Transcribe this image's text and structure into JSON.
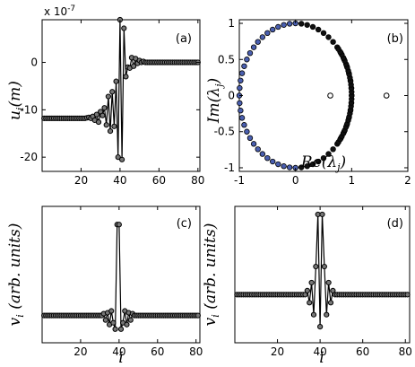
{
  "chart_data": [
    {
      "type": "line",
      "panel_label": "(a)",
      "ylabel": "u_i(m)",
      "ylabel_parts": {
        "base": "u",
        "sub": "i",
        "rest": "(m)"
      },
      "multiplier": "x 10",
      "multiplier_exp": "-7",
      "xlim": [
        0,
        81
      ],
      "ylim": [
        -23,
        9
      ],
      "xticks": [
        "20",
        "40",
        "60",
        "80"
      ],
      "xtick_values": [
        20,
        40,
        60,
        80
      ],
      "yticks": [
        "-20",
        "-10",
        "0"
      ],
      "ytick_values": [
        -20,
        -10,
        0
      ],
      "x": [
        1,
        2,
        3,
        4,
        5,
        6,
        7,
        8,
        9,
        10,
        11,
        12,
        13,
        14,
        15,
        16,
        17,
        18,
        19,
        20,
        21,
        22,
        23,
        24,
        25,
        26,
        27,
        28,
        29,
        30,
        31,
        32,
        33,
        34,
        35,
        36,
        37,
        38,
        39,
        40,
        41,
        42,
        43,
        44,
        45,
        46,
        47,
        48,
        49,
        50,
        51,
        52,
        53,
        54,
        55,
        56,
        57,
        58,
        59,
        60,
        61,
        62,
        63,
        64,
        65,
        66,
        67,
        68,
        69,
        70,
        71,
        72,
        73,
        74,
        75,
        76,
        77,
        78,
        79,
        80
      ],
      "y": [
        -11.8,
        -11.8,
        -11.8,
        -11.8,
        -11.8,
        -11.8,
        -11.8,
        -11.8,
        -11.8,
        -11.8,
        -11.8,
        -11.8,
        -11.8,
        -11.8,
        -11.8,
        -11.8,
        -11.8,
        -11.8,
        -11.8,
        -11.8,
        -11.8,
        -11.8,
        -11.7,
        -11.6,
        -11.8,
        -11.4,
        -12.2,
        -11.0,
        -12.6,
        -10.4,
        -11.2,
        -9.6,
        -13.2,
        -7.2,
        -14.5,
        -6.2,
        -13.5,
        -4.0,
        -20.0,
        9.0,
        -20.5,
        7.2,
        -3.0,
        -1.0,
        -1.2,
        1.0,
        -0.8,
        0.8,
        -0.2,
        0.4,
        0.0,
        0.2,
        0.0,
        0.0,
        0.0,
        0.0,
        0.0,
        0.0,
        0.0,
        0.0,
        0.0,
        0.0,
        0.0,
        0.0,
        0.0,
        0.0,
        0.0,
        0.0,
        0.0,
        0.0,
        0.0,
        0.0,
        0.0,
        0.0,
        0.0,
        0.0,
        0.0,
        0.0,
        0.0,
        0.0
      ]
    },
    {
      "type": "scatter",
      "panel_label": "(b)",
      "xlabel": "Re(λ_j)",
      "ylabel": "Im(λ_j)",
      "xlabel_parts": {
        "pre": "Re(",
        "base": "λ",
        "sub": "j",
        "post": ")"
      },
      "ylabel_parts": {
        "pre": "Im(",
        "base": "λ",
        "sub": "j",
        "post": ")"
      },
      "xlim": [
        -1,
        2
      ],
      "ylim": [
        -1.05,
        1.05
      ],
      "xticks": [
        "-1",
        "0",
        "1",
        "2"
      ],
      "xtick_values": [
        -1,
        0,
        1,
        2
      ],
      "yticks": [
        "-1",
        "-0.5",
        "0",
        "0.5",
        "1"
      ],
      "ytick_values": [
        -1,
        -0.5,
        0,
        0.5,
        1
      ],
      "unit_circle": {
        "points": 60,
        "radius": 1,
        "blue_fraction": 0.5
      },
      "outliers": [
        {
          "x": 0.62,
          "y": 0.0
        },
        {
          "x": 1.62,
          "y": 0.0
        }
      ]
    },
    {
      "type": "line",
      "panel_label": "(c)",
      "xlabel": "i",
      "ylabel": "v_i (arb. units)",
      "ylabel_parts": {
        "base": "v",
        "sub": "i",
        "rest": " (arb. units)"
      },
      "xlim": [
        0,
        82
      ],
      "ylim": [
        -0.3,
        1.2
      ],
      "xticks": [
        "20",
        "40",
        "60",
        "80"
      ],
      "xtick_values": [
        20,
        40,
        60,
        80
      ],
      "x": [
        1,
        2,
        3,
        4,
        5,
        6,
        7,
        8,
        9,
        10,
        11,
        12,
        13,
        14,
        15,
        16,
        17,
        18,
        19,
        20,
        21,
        22,
        23,
        24,
        25,
        26,
        27,
        28,
        29,
        30,
        31,
        32,
        33,
        34,
        35,
        36,
        37,
        38,
        39,
        40,
        41,
        42,
        43,
        44,
        45,
        46,
        47,
        48,
        49,
        50,
        51,
        52,
        53,
        54,
        55,
        56,
        57,
        58,
        59,
        60,
        61,
        62,
        63,
        64,
        65,
        66,
        67,
        68,
        69,
        70,
        71,
        72,
        73,
        74,
        75,
        76,
        77,
        78,
        79,
        80,
        81
      ],
      "y": [
        0,
        0,
        0,
        0,
        0,
        0,
        0,
        0,
        0,
        0,
        0,
        0,
        0,
        0,
        0,
        0,
        0,
        0,
        0,
        0,
        0,
        0,
        0,
        0,
        0,
        0,
        0,
        0,
        0,
        0,
        0,
        0.02,
        -0.05,
        0.03,
        -0.1,
        0.05,
        -0.08,
        -0.15,
        1.0,
        1.0,
        -0.15,
        -0.08,
        0.05,
        -0.1,
        0.03,
        -0.05,
        0.02,
        0,
        0,
        0,
        0,
        0,
        0,
        0,
        0,
        0,
        0,
        0,
        0,
        0,
        0,
        0,
        0,
        0,
        0,
        0,
        0,
        0,
        0,
        0,
        0,
        0,
        0,
        0,
        0,
        0,
        0,
        0,
        0,
        0,
        0
      ]
    },
    {
      "type": "line",
      "panel_label": "(d)",
      "xlabel": "i",
      "ylabel": "v̇_i (arb. units)",
      "ylabel_parts": {
        "base": "v",
        "dot": "·",
        "sub": "i",
        "rest": " (arb. units)"
      },
      "xlim": [
        0,
        82
      ],
      "ylim": [
        -0.6,
        1.1
      ],
      "xticks": [
        "20",
        "40",
        "60",
        "80"
      ],
      "xtick_values": [
        20,
        40,
        60,
        80
      ],
      "x": [
        1,
        2,
        3,
        4,
        5,
        6,
        7,
        8,
        9,
        10,
        11,
        12,
        13,
        14,
        15,
        16,
        17,
        18,
        19,
        20,
        21,
        22,
        23,
        24,
        25,
        26,
        27,
        28,
        29,
        30,
        31,
        32,
        33,
        34,
        35,
        36,
        37,
        38,
        39,
        40,
        41,
        42,
        43,
        44,
        45,
        46,
        47,
        48,
        49,
        50,
        51,
        52,
        53,
        54,
        55,
        56,
        57,
        58,
        59,
        60,
        61,
        62,
        63,
        64,
        65,
        66,
        67,
        68,
        69,
        70,
        71,
        72,
        73,
        74,
        75,
        76,
        77,
        78,
        79,
        80,
        81
      ],
      "y": [
        0,
        0,
        0,
        0,
        0,
        0,
        0,
        0,
        0,
        0,
        0,
        0,
        0,
        0,
        0,
        0,
        0,
        0,
        0,
        0,
        0,
        0,
        0,
        0,
        0,
        0,
        0,
        0,
        0,
        0,
        0,
        0,
        0,
        0.05,
        -0.1,
        0.15,
        -0.25,
        0.35,
        1.0,
        -0.4,
        1.0,
        0.35,
        -0.25,
        0.15,
        -0.1,
        0.05,
        0,
        0,
        0,
        0,
        0,
        0,
        0,
        0,
        0,
        0,
        0,
        0,
        0,
        0,
        0,
        0,
        0,
        0,
        0,
        0,
        0,
        0,
        0,
        0,
        0,
        0,
        0,
        0,
        0,
        0,
        0,
        0,
        0,
        0,
        0
      ]
    }
  ]
}
